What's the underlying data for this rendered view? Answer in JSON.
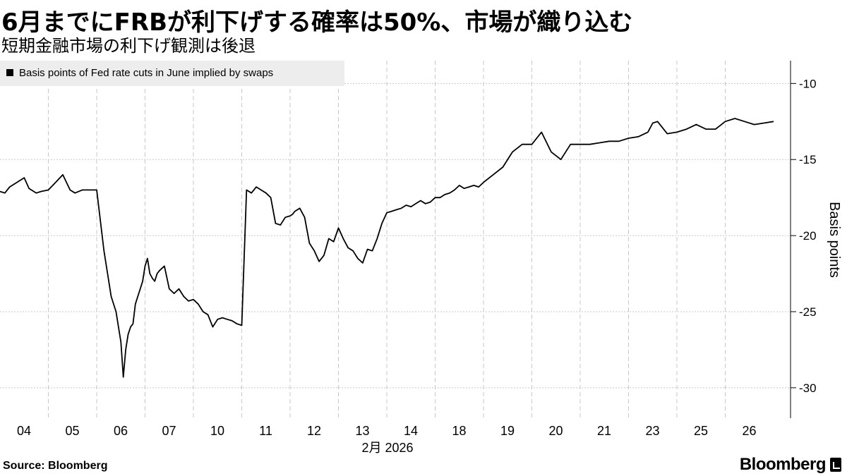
{
  "header": {
    "title": "6月までにFRBが利下げする確率は50%、市場が織り込む",
    "subtitle": "短期金融市場の利下げ観測は後退"
  },
  "footer": {
    "source": "Source:  Bloomberg",
    "logo_text": "Bloomberg"
  },
  "chart_data": {
    "type": "line",
    "legend": "Basis points of Fed rate cuts in June implied by swaps",
    "legend_placement": "top-left",
    "ylabel": "Basis points",
    "y_axis_side": "right",
    "ylim": [
      -32,
      -8.5
    ],
    "yticks": [
      -10,
      -15,
      -20,
      -25,
      -30
    ],
    "ytick_labels": [
      "-10",
      "-15",
      "-20",
      "-25",
      "-30"
    ],
    "grid": true,
    "x_tick_labels": [
      "04",
      "05",
      "06",
      "07",
      "10",
      "11",
      "12",
      "13",
      "14",
      "18",
      "19",
      "20",
      "21",
      "23",
      "25",
      "26"
    ],
    "x_secondary_label": "2月 2026",
    "series_color": "#000000",
    "series": [
      {
        "x": [
          0,
          0.1,
          0.2,
          0.35,
          0.5,
          0.6,
          0.75,
          0.85,
          1.0,
          1.15,
          1.3,
          1.45,
          1.55,
          1.7,
          1.85,
          2.0,
          2.15,
          2.3,
          2.4,
          2.5,
          2.55,
          2.6,
          2.65,
          2.7,
          2.75,
          2.8,
          2.85,
          2.9,
          2.95,
          3.0,
          3.05,
          3.1,
          3.15,
          3.2,
          3.25,
          3.3,
          3.4,
          3.5,
          3.6,
          3.7,
          3.8,
          3.9,
          4.0,
          4.1,
          4.2,
          4.3,
          4.4,
          4.5,
          4.6,
          4.7,
          4.8,
          4.9,
          5.0,
          5.1,
          5.2,
          5.3,
          5.4,
          5.5,
          5.6,
          5.7,
          5.8,
          5.9,
          6.0,
          6.05,
          6.1,
          6.2,
          6.3,
          6.4,
          6.5,
          6.6,
          6.7,
          6.8,
          6.9,
          7.0,
          7.1,
          7.2,
          7.3,
          7.4,
          7.5,
          7.6,
          7.7,
          7.8,
          7.9,
          8.0,
          8.1,
          8.2,
          8.3,
          8.4,
          8.5,
          8.6,
          8.7,
          8.8,
          8.9,
          9.0,
          9.1,
          9.2,
          9.3,
          9.4,
          9.5,
          9.6,
          9.7,
          9.8,
          9.9,
          10.0,
          10.2,
          10.4,
          10.6,
          10.8,
          11.0,
          11.2,
          11.4,
          11.6,
          11.8,
          12.0,
          12.2,
          12.4,
          12.6,
          12.8,
          13.0,
          13.2,
          13.4,
          13.5,
          13.6,
          13.8,
          14.0,
          14.2,
          14.4,
          14.6,
          14.8,
          15.0,
          15.2,
          15.4,
          15.6,
          15.8,
          16.0
        ],
        "values": [
          -17.1,
          -17.2,
          -16.8,
          -16.5,
          -16.2,
          -16.9,
          -17.2,
          -17.1,
          -17.0,
          -16.5,
          -16.0,
          -17.0,
          -17.2,
          -17.0,
          -17.0,
          -17.0,
          -21.0,
          -24.0,
          -25.0,
          -27.0,
          -29.3,
          -27.5,
          -26.5,
          -26.0,
          -25.8,
          -24.5,
          -24.0,
          -23.5,
          -23.0,
          -22.0,
          -21.5,
          -22.5,
          -22.8,
          -23.0,
          -22.5,
          -22.3,
          -22.0,
          -23.5,
          -23.8,
          -23.5,
          -24.0,
          -24.3,
          -24.2,
          -24.5,
          -25.0,
          -25.2,
          -26.0,
          -25.5,
          -25.4,
          -25.5,
          -25.6,
          -25.8,
          -25.9,
          -17.0,
          -17.2,
          -16.8,
          -17.0,
          -17.2,
          -17.5,
          -19.2,
          -19.3,
          -18.8,
          -18.7,
          -18.6,
          -18.4,
          -18.2,
          -18.8,
          -20.5,
          -21.0,
          -21.7,
          -21.3,
          -20.2,
          -20.4,
          -19.5,
          -20.2,
          -20.8,
          -21.0,
          -21.5,
          -21.8,
          -20.9,
          -21.0,
          -20.2,
          -19.2,
          -18.5,
          -18.4,
          -18.3,
          -18.2,
          -18.0,
          -18.1,
          -17.9,
          -17.7,
          -17.9,
          -17.8,
          -17.5,
          -17.5,
          -17.3,
          -17.2,
          -17.0,
          -16.7,
          -16.9,
          -16.8,
          -16.7,
          -16.8,
          -16.5,
          -16.0,
          -15.5,
          -14.5,
          -14.0,
          -14.0,
          -13.2,
          -14.5,
          -15.0,
          -14.0,
          -14.0,
          -14.0,
          -13.9,
          -13.8,
          -13.8,
          -13.6,
          -13.5,
          -13.2,
          -12.6,
          -12.5,
          -13.3,
          -13.2,
          -13.0,
          -12.7,
          -13.0,
          -13.0,
          -12.5,
          -12.3,
          -12.5,
          -12.7,
          -12.6,
          -12.5
        ]
      }
    ]
  }
}
